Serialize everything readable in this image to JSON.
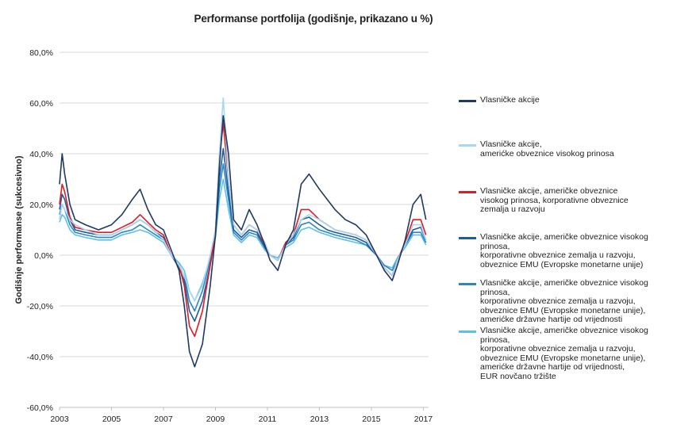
{
  "chart_data": {
    "type": "line",
    "title": "Performanse portfolija (godišnje, prikazano u %)",
    "xlabel": "",
    "ylabel": "Godišnje performanse (sukcesivno)",
    "xlim": [
      2003.0,
      2017.2
    ],
    "ylim": [
      -60,
      80
    ],
    "x_ticks": [
      "2003",
      "2005",
      "2007",
      "2009",
      "2011",
      "2013",
      "2015",
      "2017"
    ],
    "y_ticks": [
      "80,0%",
      "60,0%",
      "40,0%",
      "20,0%",
      "0,0%",
      "-20,0%",
      "-40,0%",
      "-60,0%"
    ],
    "grid": "horizontal",
    "legend_position": "right",
    "x": [
      2003.0,
      2003.1,
      2003.2,
      2003.4,
      2003.6,
      2004.0,
      2004.5,
      2005.0,
      2005.4,
      2005.8,
      2006.1,
      2006.4,
      2006.7,
      2007.0,
      2007.3,
      2007.6,
      2007.8,
      2008.0,
      2008.2,
      2008.5,
      2008.8,
      2009.0,
      2009.15,
      2009.3,
      2009.5,
      2009.7,
      2010.0,
      2010.3,
      2010.6,
      2010.9,
      2011.1,
      2011.4,
      2011.7,
      2012.0,
      2012.3,
      2012.6,
      2013.0,
      2013.3,
      2013.6,
      2014.0,
      2014.4,
      2014.8,
      2015.0,
      2015.2,
      2015.5,
      2015.8,
      2016.0,
      2016.3,
      2016.6,
      2016.9,
      2017.1
    ],
    "series": [
      {
        "name": "Vlasničke akcije",
        "color": "#1f3864",
        "values": [
          28,
          40,
          32,
          20,
          14,
          12,
          10,
          12,
          16,
          22,
          26,
          18,
          12,
          10,
          2,
          -6,
          -20,
          -38,
          -44,
          -35,
          -12,
          8,
          35,
          55,
          40,
          14,
          10,
          18,
          12,
          4,
          -2,
          -6,
          4,
          10,
          28,
          32,
          26,
          22,
          18,
          14,
          12,
          8,
          4,
          0,
          -6,
          -10,
          -4,
          6,
          20,
          24,
          14
        ]
      },
      {
        "name": "Vlasničke akcije,\namerićke obveznice visokog prinosa",
        "color": "#a9d8ee",
        "values": [
          14,
          20,
          18,
          14,
          12,
          10,
          8,
          8,
          10,
          12,
          14,
          12,
          9,
          6,
          0,
          -4,
          -8,
          -14,
          -18,
          -12,
          0,
          10,
          40,
          62,
          30,
          12,
          8,
          12,
          10,
          5,
          0,
          -2,
          4,
          8,
          14,
          16,
          14,
          12,
          10,
          9,
          8,
          6,
          3,
          0,
          -5,
          -8,
          -2,
          4,
          12,
          12,
          6
        ]
      },
      {
        "name": "Vlasničke akcije, američke obveznice\nvisokog prinosa, korporativne obveznice\nzemalja u razvoju",
        "color": "#e01b24",
        "values": [
          20,
          28,
          25,
          15,
          11,
          10,
          9,
          9,
          11,
          13,
          16,
          13,
          10,
          8,
          0,
          -4,
          -12,
          -28,
          -32,
          -22,
          -4,
          10,
          38,
          52,
          30,
          12,
          8,
          12,
          10,
          4,
          0,
          -2,
          5,
          8,
          18,
          18,
          14,
          12,
          10,
          9,
          8,
          6,
          3,
          0,
          -5,
          -8,
          -2,
          5,
          14,
          14,
          8
        ]
      },
      {
        "name": "Vlasničke akcije, američke obveznice visokog prinosa,\nkorporativne obveznice zemalja u razvoju,\nobveznice EMU (Evropske monetarne unije)",
        "color": "#1b5e9e",
        "values": [
          18,
          24,
          22,
          14,
          10,
          9,
          8,
          8,
          10,
          12,
          14,
          12,
          9,
          7,
          0,
          -5,
          -10,
          -22,
          -26,
          -18,
          -4,
          8,
          30,
          42,
          25,
          10,
          7,
          10,
          9,
          3,
          0,
          -2,
          4,
          7,
          14,
          15,
          12,
          10,
          9,
          8,
          7,
          5,
          2,
          0,
          -5,
          -8,
          -2,
          4,
          10,
          11,
          6
        ]
      },
      {
        "name": "Vlasničke akcije, američke obveznice visokog prinosa,\nkorporativne obveznice zemalja u razvoju,\nobveznice EMU (Evropske monetarne unije),\namerićke državne hartije od vrijednosti",
        "color": "#2e86c1",
        "values": [
          16,
          20,
          18,
          12,
          9,
          8,
          7,
          7,
          9,
          10,
          12,
          10,
          8,
          6,
          0,
          -4,
          -8,
          -18,
          -22,
          -14,
          -2,
          8,
          26,
          36,
          22,
          9,
          6,
          9,
          8,
          3,
          0,
          -2,
          4,
          6,
          12,
          13,
          10,
          9,
          8,
          7,
          6,
          4,
          2,
          0,
          -4,
          -6,
          -2,
          4,
          9,
          9,
          5
        ]
      },
      {
        "name": "Vlasničke akcije, američke obveznice visokog prinosa,\nkorporativne obveznice zemalja u razvoju,\nobveznice EMU (Evropske monetarne unije),\namerićke državne hartije od vrijednosti,\nEUR novčano tržište",
        "color": "#5bc0eb",
        "values": [
          13,
          16,
          15,
          10,
          8,
          7,
          6,
          6,
          8,
          9,
          10,
          9,
          7,
          5,
          0,
          -3,
          -6,
          -14,
          -18,
          -11,
          -1,
          7,
          22,
          30,
          18,
          8,
          5,
          8,
          7,
          2,
          0,
          -1,
          3,
          5,
          10,
          11,
          9,
          8,
          7,
          6,
          5,
          4,
          2,
          0,
          -4,
          -5,
          -1,
          3,
          8,
          8,
          4
        ]
      }
    ]
  }
}
